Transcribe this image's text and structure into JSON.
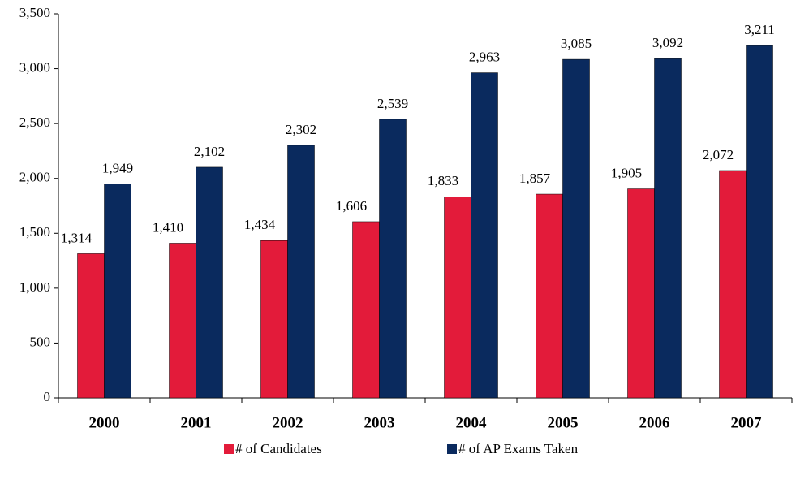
{
  "chart_data": {
    "type": "bar",
    "categories": [
      "2000",
      "2001",
      "2002",
      "2003",
      "2004",
      "2005",
      "2006",
      "2007"
    ],
    "series": [
      {
        "name": "# of Candidates",
        "color": "#e31b3a",
        "values": [
          1314,
          1410,
          1434,
          1606,
          1833,
          1857,
          1905,
          2072
        ],
        "value_labels": [
          "1,314",
          "1,410",
          "1,434",
          "1,606",
          "1,833",
          "1,857",
          "1,905",
          "2,072"
        ]
      },
      {
        "name": "# of AP Exams Taken",
        "color": "#0a2a5e",
        "values": [
          1949,
          2102,
          2302,
          2539,
          2963,
          3085,
          3092,
          3211
        ],
        "value_labels": [
          "1,949",
          "2,102",
          "2,302",
          "2,539",
          "2,963",
          "3,085",
          "3,092",
          "3,211"
        ]
      }
    ],
    "ylim": [
      0,
      3500
    ],
    "yticks": [
      0,
      500,
      {
        "value": 1000,
        "label": "1,000"
      },
      {
        "value": 1500,
        "label": "1,500"
      },
      {
        "value": 2000,
        "label": "2,000"
      },
      {
        "value": 2500,
        "label": "2,500"
      },
      {
        "value": 3000,
        "label": "3,000"
      },
      {
        "value": 3500,
        "label": "3,500"
      }
    ],
    "legend": "bottom"
  }
}
